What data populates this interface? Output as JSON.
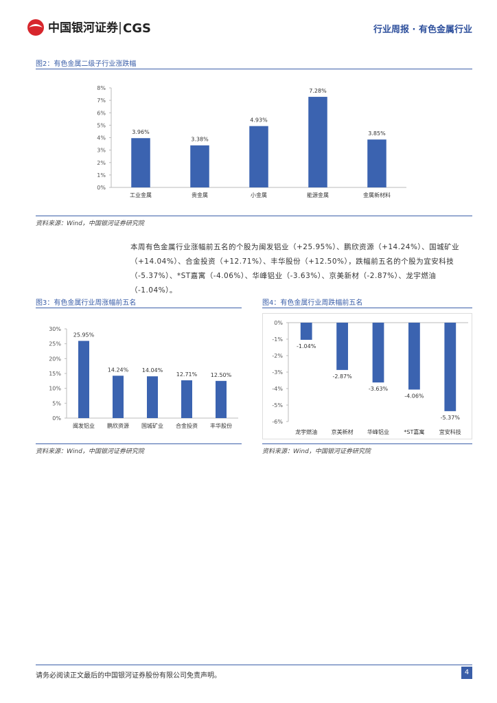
{
  "header": {
    "logo_cn": "中国银河证券",
    "logo_en": "CGS",
    "report": "行业周报 · 有色金属行业"
  },
  "chart_data": [
    {
      "type": "bar",
      "title": "图2：有色金属二级子行业涨跌幅",
      "categories": [
        "工业金属",
        "贵金属",
        "小金属",
        "能源金属",
        "金属新材料"
      ],
      "values": [
        3.96,
        3.38,
        4.93,
        7.28,
        3.85
      ],
      "value_labels": [
        "3.96%",
        "3.38%",
        "4.93%",
        "7.28%",
        "3.85%"
      ],
      "color": "#3b63b0",
      "ylim": [
        0,
        8
      ],
      "yticks": [
        {
          "value": 0,
          "label": "0%"
        },
        {
          "value": 1,
          "label": "1%"
        },
        {
          "value": 2,
          "label": "2%"
        },
        {
          "value": 3,
          "label": "3%"
        },
        {
          "value": 4,
          "label": "4%"
        },
        {
          "value": 5,
          "label": "5%"
        },
        {
          "value": 6,
          "label": "6%"
        },
        {
          "value": 7,
          "label": "7%"
        },
        {
          "value": 8,
          "label": "8%"
        }
      ],
      "source": "资料来源：Wind，中国银河证券研究院"
    },
    {
      "type": "bar",
      "title": "图3：有色金属行业周涨幅前五名",
      "categories": [
        "闽发铝业",
        "鹏欣资源",
        "国城矿业",
        "合金投资",
        "丰华股份"
      ],
      "values": [
        25.95,
        14.24,
        14.04,
        12.71,
        12.5
      ],
      "value_labels": [
        "25.95%",
        "14.24%",
        "14.04%",
        "12.71%",
        "12.50%"
      ],
      "color": "#3b63b0",
      "ylim": [
        0,
        30
      ],
      "yticks": [
        {
          "value": 0,
          "label": "0%"
        },
        {
          "value": 5,
          "label": "5%"
        },
        {
          "value": 10,
          "label": "10%"
        },
        {
          "value": 15,
          "label": "15%"
        },
        {
          "value": 20,
          "label": "20%"
        },
        {
          "value": 25,
          "label": "25%"
        },
        {
          "value": 30,
          "label": "30%"
        }
      ],
      "source": "资料来源：Wind，中国银河证券研究院"
    },
    {
      "type": "bar",
      "title": "图4：有色金属行业周跌幅前五名",
      "categories": [
        "龙宇燃油",
        "京美新材",
        "华峰铝业",
        "*ST嘉寓",
        "宜安科技"
      ],
      "values": [
        -1.04,
        -2.87,
        -3.63,
        -4.06,
        -5.37
      ],
      "value_labels": [
        "-1.04%",
        "-2.87%",
        "-3.63%",
        "-4.06%",
        "-5.37%"
      ],
      "color": "#3b63b0",
      "ylim": [
        -6,
        0
      ],
      "yticks": [
        {
          "value": 0,
          "label": "0%"
        },
        {
          "value": -1,
          "label": "-1%"
        },
        {
          "value": -2,
          "label": "-2%"
        },
        {
          "value": -3,
          "label": "-3%"
        },
        {
          "value": -4,
          "label": "-4%"
        },
        {
          "value": -5,
          "label": "-5%"
        },
        {
          "value": -6,
          "label": "-6%"
        }
      ],
      "source": "资料来源：Wind，中国银河证券研究院"
    }
  ],
  "paragraph": "本周有色金属行业涨幅前五名的个股为闽发铝业（+25.95%）、鹏欣资源（+14.24%）、国城矿业（+14.04%）、合金投资（+12.71%）、丰华股份（+12.50%），跌幅前五名的个股为宜安科技（-5.37%）、*ST嘉寓（-4.06%）、华峰铝业（-3.63%）、京美新材（-2.87%）、龙宇燃油（-1.04%）。",
  "footer": {
    "disclaimer": "请务必阅读正文最后的中国银河证券股份有限公司免责声明。",
    "page": "4"
  }
}
